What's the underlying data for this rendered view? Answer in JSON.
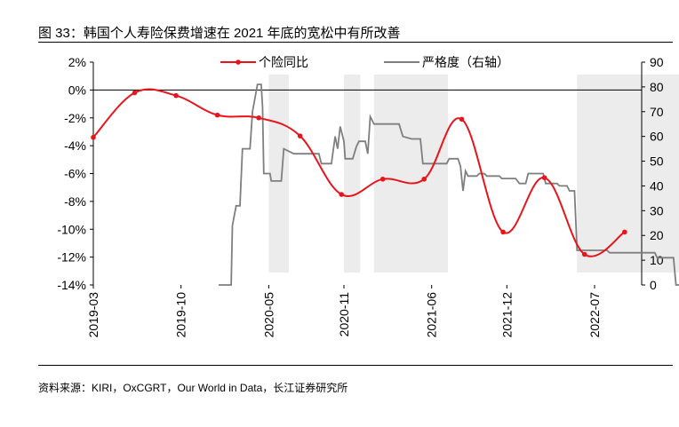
{
  "figure": {
    "title": "图 33：韩国个人寿险保费增速在 2021 年底的宽松中有所改善",
    "source": "资料来源：KIRI，OxCGRT，Our World in Data，长江证券研究所"
  },
  "chart_data": {
    "type": "line",
    "x_tick_labels": [
      "2019-03",
      "2019-10",
      "2020-05",
      "2020-11",
      "2021-06",
      "2021-12",
      "2022-07"
    ],
    "x_tick_months": [
      0,
      7,
      14,
      20,
      27,
      33,
      40
    ],
    "left_axis": {
      "ylim": [
        -14,
        2
      ],
      "ticks": [
        -14,
        -12,
        -10,
        -8,
        -6,
        -4,
        -2,
        0,
        2
      ],
      "tick_labels": [
        "-14%",
        "-12%",
        "-10%",
        "-8%",
        "-6%",
        "-4%",
        "-2%",
        "0%",
        "2%"
      ]
    },
    "right_axis": {
      "ylim": [
        0,
        90
      ],
      "ticks": [
        0,
        10,
        20,
        30,
        40,
        50,
        60,
        70,
        80,
        90
      ],
      "tick_labels": [
        "0",
        "10",
        "20",
        "30",
        "40",
        "50",
        "60",
        "70",
        "80",
        "90"
      ]
    },
    "shaded_periods_months": [
      [
        14.0,
        15.6
      ],
      [
        20.0,
        21.3
      ],
      [
        22.4,
        28.3
      ],
      [
        38.6,
        46.8
      ]
    ],
    "series": [
      {
        "name": "个险同比",
        "axis": "left",
        "color": "#e8141b",
        "marker": "circle",
        "points": [
          [
            0,
            -3.4
          ],
          [
            3.3,
            -0.2
          ],
          [
            6.6,
            -0.4
          ],
          [
            9.9,
            -1.8
          ],
          [
            13.2,
            -2.0
          ],
          [
            16.5,
            -3.3
          ],
          [
            19.8,
            -7.5
          ],
          [
            23.1,
            -6.4
          ],
          [
            26.4,
            -6.4
          ],
          [
            29.4,
            -2.1
          ],
          [
            32.7,
            -10.2
          ],
          [
            36.0,
            -6.3
          ],
          [
            39.2,
            -11.8
          ],
          [
            42.4,
            -10.2
          ]
        ]
      },
      {
        "name": "严格度（右轴）",
        "axis": "right",
        "color": "#7f7f7f",
        "marker": "none",
        "points": [
          [
            10.0,
            0
          ],
          [
            11.0,
            0
          ],
          [
            11.1,
            24
          ],
          [
            11.4,
            32
          ],
          [
            11.7,
            32
          ],
          [
            11.9,
            55
          ],
          [
            12.5,
            55
          ],
          [
            12.7,
            70
          ],
          [
            13.1,
            81
          ],
          [
            13.4,
            81
          ],
          [
            13.5,
            72
          ],
          [
            13.6,
            45
          ],
          [
            14.1,
            45
          ],
          [
            14.2,
            42
          ],
          [
            15.0,
            42
          ],
          [
            15.2,
            55
          ],
          [
            16.0,
            53
          ],
          [
            17.0,
            53
          ],
          [
            18.0,
            53
          ],
          [
            18.2,
            49
          ],
          [
            19.0,
            49
          ],
          [
            19.3,
            60
          ],
          [
            19.5,
            55
          ],
          [
            19.7,
            64
          ],
          [
            20.0,
            58
          ],
          [
            20.1,
            51
          ],
          [
            20.7,
            51
          ],
          [
            21.0,
            56
          ],
          [
            21.2,
            58
          ],
          [
            21.7,
            58
          ],
          [
            21.9,
            53
          ],
          [
            22.1,
            68
          ],
          [
            22.4,
            65
          ],
          [
            24.4,
            65
          ],
          [
            24.7,
            60
          ],
          [
            25.4,
            59
          ],
          [
            26.1,
            59
          ],
          [
            26.3,
            49
          ],
          [
            28.2,
            49
          ],
          [
            28.4,
            51
          ],
          [
            29.1,
            51
          ],
          [
            29.3,
            48
          ],
          [
            29.5,
            38
          ],
          [
            29.7,
            46
          ],
          [
            29.9,
            44
          ],
          [
            30.6,
            44
          ],
          [
            30.8,
            45
          ],
          [
            31.2,
            45
          ],
          [
            31.4,
            44
          ],
          [
            32.4,
            44
          ],
          [
            32.6,
            43
          ],
          [
            33.7,
            43
          ],
          [
            34.0,
            41
          ],
          [
            34.5,
            41
          ],
          [
            34.7,
            45
          ],
          [
            35.9,
            45
          ],
          [
            36.1,
            41
          ],
          [
            37.0,
            41
          ],
          [
            37.2,
            40
          ],
          [
            37.8,
            40
          ],
          [
            38.0,
            38
          ],
          [
            38.4,
            38
          ],
          [
            38.6,
            14
          ],
          [
            41.0,
            14
          ],
          [
            41.2,
            13
          ],
          [
            44.8,
            13
          ],
          [
            45.0,
            11
          ],
          [
            46.3,
            11
          ],
          [
            46.5,
            0
          ],
          [
            46.8,
            0
          ]
        ]
      }
    ],
    "legend": {
      "position": "top-center",
      "entries": [
        "个险同比",
        "严格度（右轴）"
      ]
    }
  }
}
